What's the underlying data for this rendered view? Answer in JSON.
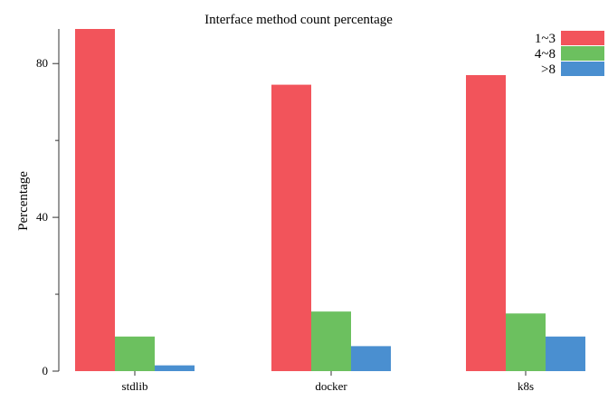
{
  "chart_data": {
    "type": "bar",
    "title": "Interface method count percentage",
    "xlabel": "",
    "ylabel": "Percentage",
    "ylim": [
      0,
      89
    ],
    "yticks_major": [
      0,
      40,
      80
    ],
    "yticks_minor": [
      20,
      60
    ],
    "categories": [
      "stdlib",
      "docker",
      "k8s"
    ],
    "series": [
      {
        "name": "1~3",
        "color": "#f2545b",
        "values": [
          89,
          74.5,
          77
        ]
      },
      {
        "name": "4~8",
        "color": "#6cc05f",
        "values": [
          9,
          15.5,
          15
        ]
      },
      {
        "name": ">8",
        "color": "#4a8fd0",
        "values": [
          1.5,
          6.5,
          9
        ]
      }
    ],
    "grid": false,
    "legend": "top-right"
  }
}
